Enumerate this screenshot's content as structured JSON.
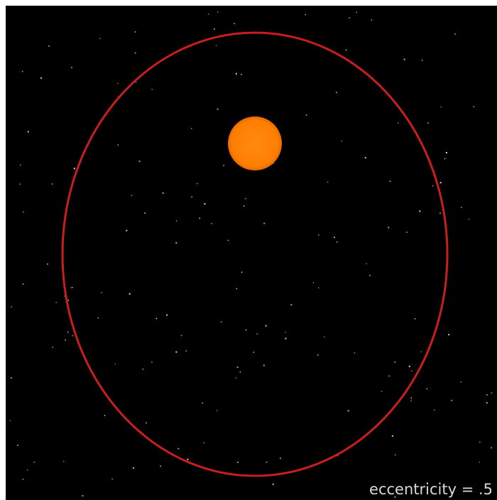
{
  "label": "eccentricity = .5"
}
